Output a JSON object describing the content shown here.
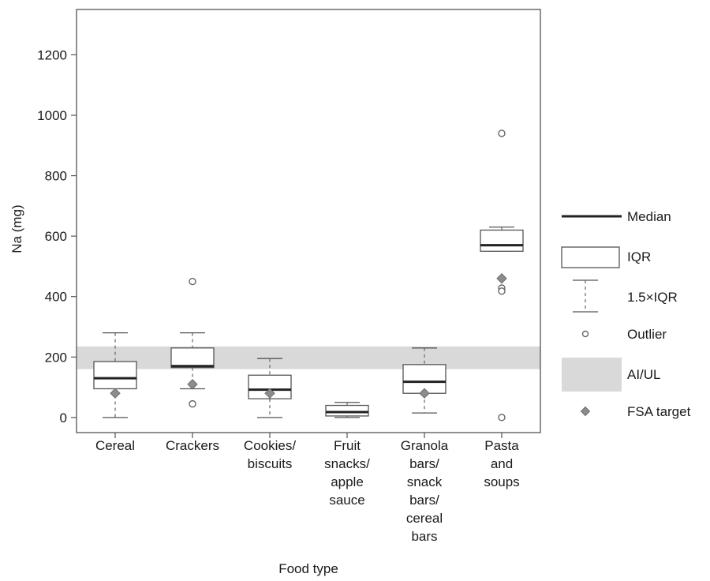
{
  "chart_data": {
    "type": "box",
    "xlabel": "Food type",
    "ylabel": "Na (mg)",
    "ylim": [
      -50,
      1350
    ],
    "yticks": [
      0,
      200,
      400,
      600,
      800,
      1000,
      1200
    ],
    "band": {
      "name": "AI/UL",
      "from": 160,
      "to": 235,
      "color": "#d9d9d9"
    },
    "categories": [
      {
        "label": [
          "Cereal"
        ],
        "whisker_low": 0,
        "q1": 95,
        "median": 130,
        "q3": 185,
        "whisker_high": 280,
        "outliers": [],
        "fsa_target": 80
      },
      {
        "label": [
          "Crackers"
        ],
        "whisker_low": 95,
        "q1": 165,
        "median": 170,
        "q3": 230,
        "whisker_high": 280,
        "outliers": [
          450,
          45
        ],
        "fsa_target": 110
      },
      {
        "label": [
          "Cookies/",
          "biscuits"
        ],
        "whisker_low": 0,
        "q1": 62,
        "median": 92,
        "q3": 140,
        "whisker_high": 195,
        "outliers": [],
        "fsa_target": 80
      },
      {
        "label": [
          "Fruit",
          "snacks/",
          "apple",
          "sauce"
        ],
        "whisker_low": 0,
        "q1": 5,
        "median": 18,
        "q3": 40,
        "whisker_high": 50,
        "outliers": [],
        "fsa_target": null
      },
      {
        "label": [
          "Granola",
          "bars/",
          "snack",
          "bars/",
          "cereal",
          "bars"
        ],
        "whisker_low": 15,
        "q1": 80,
        "median": 118,
        "q3": 175,
        "whisker_high": 230,
        "outliers": [],
        "fsa_target": 80
      },
      {
        "label": [
          "Pasta",
          "and",
          "soups"
        ],
        "whisker_low": 550,
        "q1": 550,
        "median": 570,
        "q3": 620,
        "whisker_high": 630,
        "outliers": [
          940,
          428,
          418,
          0
        ],
        "fsa_target": 460
      }
    ],
    "legend": {
      "position": "right",
      "items": [
        {
          "key": "median",
          "label": "Median"
        },
        {
          "key": "iqr",
          "label": "IQR"
        },
        {
          "key": "whisker",
          "label": "1.5×IQR"
        },
        {
          "key": "outlier",
          "label": "Outlier"
        },
        {
          "key": "band",
          "label": "AI/UL"
        },
        {
          "key": "fsa",
          "label": "FSA target"
        }
      ]
    },
    "colors": {
      "box_stroke": "#555555",
      "median": "#222222",
      "outlier": "#666666",
      "fsa_target": "#8c8c8c"
    }
  }
}
